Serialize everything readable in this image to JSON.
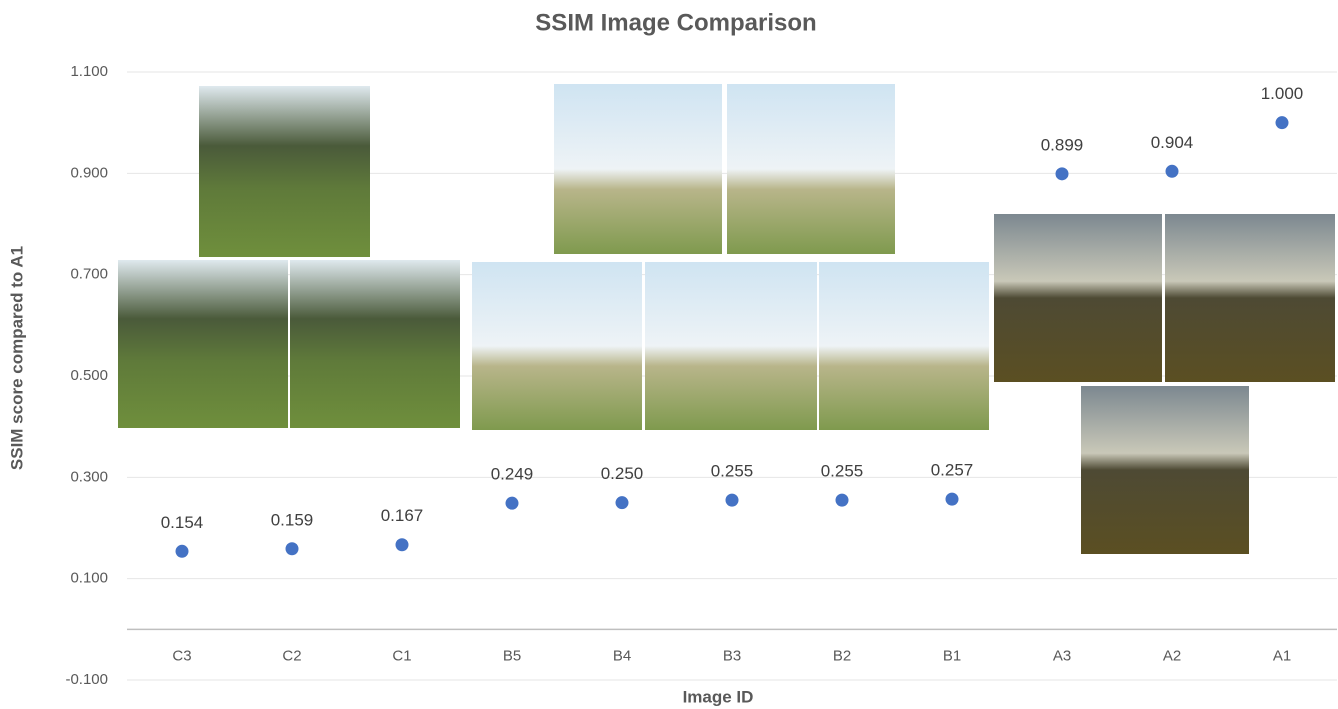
{
  "chart_data": {
    "type": "scatter",
    "title": "SSIM Image Comparison",
    "x_label": "Image ID",
    "y_label": "SSIM score compared to A1",
    "categories": [
      "C3",
      "C2",
      "C1",
      "B5",
      "B4",
      "B3",
      "B2",
      "B1",
      "A3",
      "A2",
      "A1"
    ],
    "values": [
      0.154,
      0.159,
      0.167,
      0.249,
      0.25,
      0.255,
      0.255,
      0.257,
      0.899,
      0.904,
      1.0
    ],
    "value_labels": [
      "0.154",
      "0.159",
      "0.167",
      "0.249",
      "0.250",
      "0.255",
      "0.255",
      "0.257",
      "0.899",
      "0.904",
      "1.000"
    ],
    "color": "#4472c4",
    "ylim": [
      -0.1,
      1.1
    ],
    "yticks": [
      {
        "value": -0.1,
        "label": "-0.100"
      },
      {
        "value": 0.1,
        "label": "0.100"
      },
      {
        "value": 0.3,
        "label": "0.300"
      },
      {
        "value": 0.5,
        "label": "0.500"
      },
      {
        "value": 0.7,
        "label": "0.700"
      },
      {
        "value": 0.9,
        "label": "0.900"
      },
      {
        "value": 1.1,
        "label": "1.100"
      }
    ],
    "grid": true
  }
}
